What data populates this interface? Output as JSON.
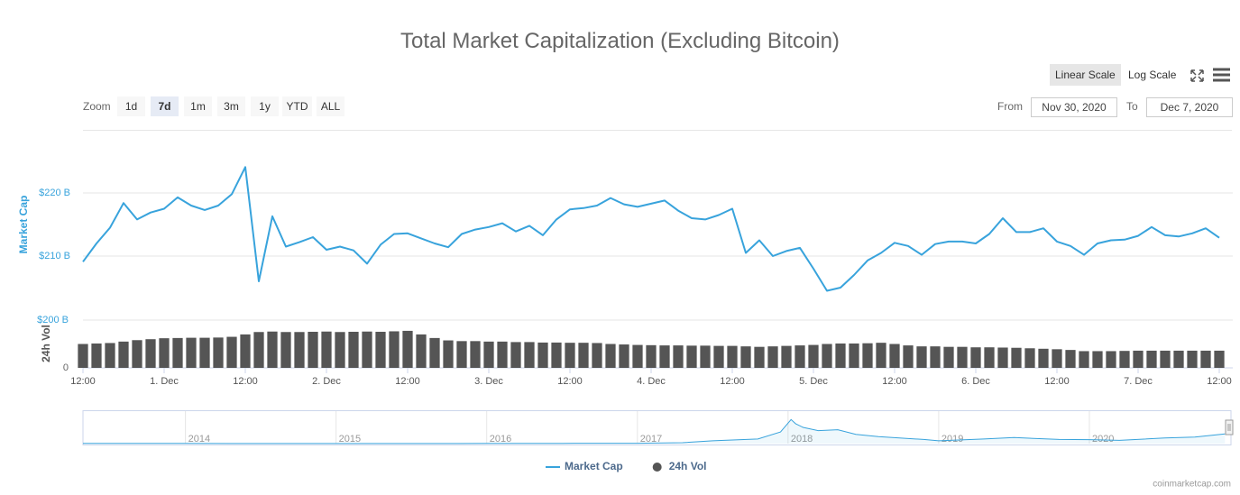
{
  "chart_data": [
    {
      "type": "line",
      "title": "Total Market Capitalization (Excluding Bitcoin)",
      "y_axis_title": "Market Cap",
      "y2_axis_title": "24h Vol",
      "log_scale": false,
      "grid": true,
      "legend_position": "bottom",
      "x": [
        0,
        2,
        4,
        6,
        8,
        10,
        12,
        14,
        16,
        18,
        20,
        22,
        24,
        26,
        28,
        30,
        32,
        34,
        36,
        38,
        40,
        42,
        44,
        46,
        48,
        50,
        52,
        54,
        56,
        58,
        60,
        62,
        64,
        66,
        68,
        70,
        72,
        74,
        76,
        78,
        80,
        82,
        84,
        86,
        88,
        90,
        92,
        94,
        96,
        98,
        100,
        102,
        104,
        106,
        108,
        110,
        112,
        114,
        116,
        118,
        120,
        122,
        124,
        126,
        128,
        130,
        132,
        134,
        136,
        138,
        140,
        142,
        144,
        146,
        148,
        150,
        152,
        154,
        156,
        158,
        160,
        162,
        164,
        166,
        168
      ],
      "xlim": [
        0,
        170
      ],
      "xticks": [
        {
          "value": 0,
          "label": "12:00"
        },
        {
          "value": 12,
          "label": "1. Dec"
        },
        {
          "value": 24,
          "label": "12:00"
        },
        {
          "value": 36,
          "label": "2. Dec"
        },
        {
          "value": 48,
          "label": "12:00"
        },
        {
          "value": 60,
          "label": "3. Dec"
        },
        {
          "value": 72,
          "label": "12:00"
        },
        {
          "value": 84,
          "label": "4. Dec"
        },
        {
          "value": 96,
          "label": "12:00"
        },
        {
          "value": 108,
          "label": "5. Dec"
        },
        {
          "value": 120,
          "label": "12:00"
        },
        {
          "value": 132,
          "label": "6. Dec"
        },
        {
          "value": 144,
          "label": "12:00"
        },
        {
          "value": 156,
          "label": "7. Dec"
        },
        {
          "value": 168,
          "label": "12:00"
        }
      ],
      "ylim": [
        200,
        230
      ],
      "yticks": [
        {
          "value": 210,
          "label": "$210 B"
        },
        {
          "value": 220,
          "label": "$220 B"
        }
      ],
      "y2lim": [
        0,
        200
      ],
      "y2ticks": [
        0,
        {
          "value": 200,
          "label": "$200 B"
        }
      ],
      "series": [
        {
          "name": "Market Cap",
          "type": "line",
          "color": "#38a3dc",
          "values": [
            209.1,
            212.0,
            214.5,
            218.4,
            215.8,
            216.9,
            217.5,
            219.3,
            218.0,
            217.3,
            218.0,
            219.8,
            224.1,
            206.0,
            216.3,
            211.5,
            212.2,
            213.0,
            211.0,
            211.5,
            210.9,
            208.8,
            211.8,
            213.5,
            213.6,
            212.8,
            212.0,
            211.4,
            213.5,
            214.2,
            214.6,
            215.2,
            213.9,
            214.8,
            213.3,
            215.8,
            217.4,
            217.6,
            218.0,
            219.2,
            218.2,
            217.8,
            218.3,
            218.8,
            217.2,
            216.0,
            215.8,
            216.5,
            217.5,
            210.5,
            212.5,
            210.0,
            210.8,
            211.3,
            208.0,
            204.5,
            205.0,
            207.0,
            209.3,
            210.5,
            212.1,
            211.6,
            210.2,
            211.9,
            212.3,
            212.3,
            212.0,
            213.5,
            216.0,
            213.8,
            213.8,
            214.4,
            212.3,
            211.6,
            210.2,
            212.0,
            212.5,
            212.6,
            213.2,
            214.6,
            213.3,
            213.1,
            213.6,
            214.4,
            212.9
          ]
        },
        {
          "name": "24h Vol",
          "type": "column",
          "axis": "y2",
          "color": "#555555",
          "values": [
            100,
            102,
            104,
            110,
            116,
            120,
            124,
            125,
            126,
            126,
            127,
            130,
            140,
            150,
            152,
            150,
            150,
            151,
            152,
            150,
            151,
            152,
            151,
            153,
            155,
            140,
            125,
            115,
            112,
            112,
            110,
            110,
            108,
            108,
            106,
            106,
            105,
            105,
            104,
            100,
            98,
            96,
            95,
            94,
            94,
            93,
            93,
            92,
            92,
            90,
            88,
            90,
            92,
            94,
            96,
            100,
            102,
            102,
            103,
            105,
            100,
            94,
            90,
            90,
            88,
            88,
            86,
            86,
            85,
            84,
            82,
            80,
            78,
            75,
            70,
            70,
            70,
            71,
            72,
            72,
            72,
            72,
            72,
            72,
            72
          ]
        }
      ]
    },
    {
      "type": "area",
      "color": "#38a3dc",
      "x": [
        2013.32,
        2014,
        2015,
        2016,
        2016.5,
        2017,
        2017.3,
        2017.5,
        2017.8,
        2017.95,
        2018.02,
        2018.05,
        2018.1,
        2018.2,
        2018.33,
        2018.45,
        2018.6,
        2018.9,
        2019.0,
        2019.3,
        2019.5,
        2019.8,
        2020.0,
        2020.2,
        2020.5,
        2020.7,
        2020.9
      ],
      "values": [
        3,
        4,
        2,
        3,
        5,
        8,
        20,
        60,
        100,
        250,
        520,
        430,
        350,
        280,
        300,
        200,
        150,
        90,
        60,
        100,
        130,
        90,
        85,
        70,
        120,
        140,
        210
      ],
      "xlim": [
        2013.32,
        2020.94
      ],
      "xticks": [
        2014,
        2015,
        2016,
        2017,
        2018,
        2019,
        2020
      ],
      "ylim": [
        0,
        700
      ]
    }
  ],
  "controls": {
    "zoom_label": "Zoom",
    "zoom_buttons": [
      "1d",
      "7d",
      "1m",
      "3m",
      "1y",
      "YTD",
      "ALL"
    ],
    "selected_zoom_index": 1,
    "scale_buttons": [
      "Linear Scale",
      "Log Scale"
    ],
    "from_label": "From",
    "from_date": "Nov 30, 2020",
    "to_label": "To",
    "to_date": "Dec 7, 2020"
  },
  "credit": "coinmarketcap.com"
}
